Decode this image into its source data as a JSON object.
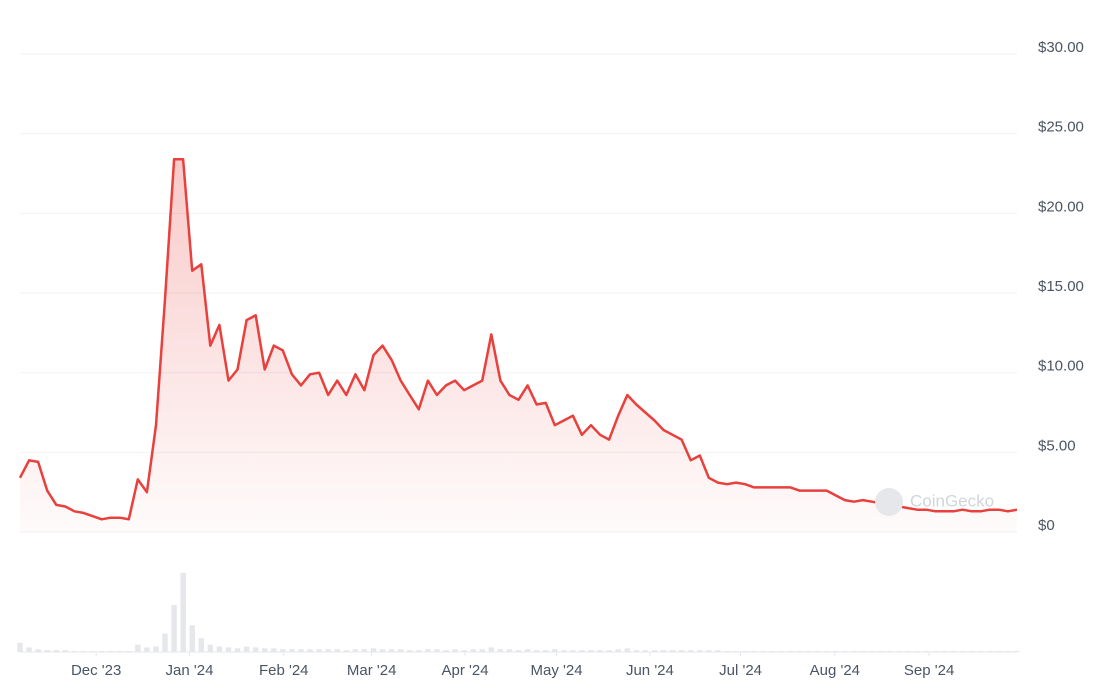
{
  "chart_data": {
    "type": "area",
    "color": "#e8403c",
    "volume_color": "#e5e7eb",
    "grid": true,
    "watermark": "CoinGecko",
    "xlim": [
      0,
      110
    ],
    "xticks": [
      {
        "value": 8.4,
        "label": "Dec '23"
      },
      {
        "value": 18.7,
        "label": "Jan '24"
      },
      {
        "value": 29.1,
        "label": "Feb '24"
      },
      {
        "value": 38.8,
        "label": "Mar '24"
      },
      {
        "value": 49.1,
        "label": "Apr '24"
      },
      {
        "value": 59.2,
        "label": "May '24"
      },
      {
        "value": 69.5,
        "label": "Jun '24"
      },
      {
        "value": 79.5,
        "label": "Jul '24"
      },
      {
        "value": 89.9,
        "label": "Aug '24"
      },
      {
        "value": 100.3,
        "label": "Sep '24"
      }
    ],
    "ylim": [
      0,
      30
    ],
    "yticks": [
      {
        "value": 0,
        "label": "$0"
      },
      {
        "value": 5,
        "label": "$5.00"
      },
      {
        "value": 10,
        "label": "$10.00"
      },
      {
        "value": 15,
        "label": "$15.00"
      },
      {
        "value": 20,
        "label": "$20.00"
      },
      {
        "value": 25,
        "label": "$25.00"
      },
      {
        "value": 30,
        "label": "$30.00"
      }
    ],
    "y2lim": [
      0,
      100
    ],
    "values": [
      3.4,
      4.5,
      4.4,
      2.6,
      1.7,
      1.6,
      1.3,
      1.2,
      1.0,
      0.8,
      0.9,
      0.9,
      0.8,
      3.3,
      2.5,
      6.7,
      14.6,
      23.4,
      23.4,
      16.4,
      16.8,
      11.7,
      13.0,
      9.5,
      10.2,
      13.3,
      13.6,
      10.2,
      11.7,
      11.4,
      9.9,
      9.2,
      9.9,
      10.0,
      8.6,
      9.5,
      8.6,
      9.9,
      8.9,
      11.1,
      11.7,
      10.8,
      9.5,
      8.6,
      7.7,
      9.5,
      8.6,
      9.2,
      9.5,
      8.9,
      9.2,
      9.5,
      12.4,
      9.5,
      8.6,
      8.3,
      9.2,
      8.0,
      8.1,
      6.7,
      7.0,
      7.3,
      6.1,
      6.7,
      6.1,
      5.8,
      7.3,
      8.6,
      8.0,
      7.5,
      7.0,
      6.4,
      6.1,
      5.8,
      4.5,
      4.8,
      3.4,
      3.1,
      3.0,
      3.1,
      3.0,
      2.8,
      2.8,
      2.8,
      2.8,
      2.8,
      2.6,
      2.6,
      2.6,
      2.6,
      2.3,
      2.0,
      1.9,
      2.0,
      1.9,
      1.8,
      1.7,
      1.6,
      1.5,
      1.4,
      1.4,
      1.3,
      1.3,
      1.3,
      1.4,
      1.3,
      1.3,
      1.4,
      1.4,
      1.3,
      1.4
    ],
    "volume": [
      10,
      5,
      3,
      2,
      2,
      2,
      1,
      1,
      1,
      1,
      1,
      1,
      1,
      8,
      5,
      6,
      20,
      51,
      86,
      29,
      15,
      8,
      6,
      5,
      4,
      6,
      5,
      4,
      4,
      3,
      3,
      3,
      3,
      3,
      3,
      3,
      2,
      3,
      3,
      4,
      3,
      3,
      3,
      2,
      2,
      3,
      3,
      2,
      3,
      2,
      3,
      3,
      5,
      3,
      3,
      2,
      3,
      2,
      2,
      3,
      2,
      2,
      2,
      2,
      2,
      2,
      3,
      4,
      2,
      2,
      2,
      2,
      2,
      2,
      2,
      2,
      2,
      2,
      1,
      1,
      1,
      1,
      1,
      1,
      1,
      1,
      1,
      1,
      1,
      1,
      1,
      1,
      1,
      1,
      1,
      1,
      1,
      1,
      1,
      1,
      1,
      1,
      1,
      1,
      1,
      1,
      1,
      1,
      1,
      1,
      1
    ]
  }
}
